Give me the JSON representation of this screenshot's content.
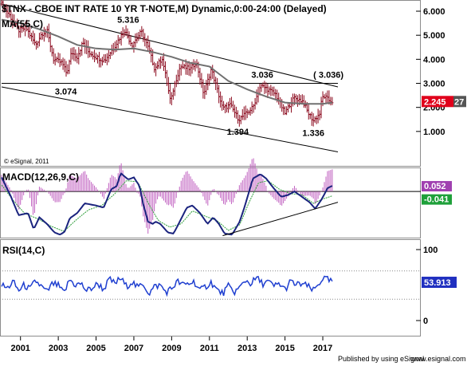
{
  "window": {
    "title": "$TNX - CBOE INT RATE 10 YR T-NOTE,M) Dynamic,0:00-24:00 (Delayed)",
    "copyright": "© eSignal, 2011",
    "footer_left": "Published by using eSignal",
    "footer_right": "www.esignal.com"
  },
  "colors": {
    "price_bar": "#8b0a1e",
    "moving_average": "#707070",
    "channel": "#000000",
    "macd_line": "#1a237e",
    "signal_line": "#2e9e3a",
    "histogram": "#c060c0",
    "rsi_line": "#1f3fd0",
    "price_tag": "#e0001b",
    "macd_tag": "#a040b0",
    "signal_tag": "#1fa03a",
    "rsi_tag": "#2030c0"
  },
  "chart_data": [
    {
      "type": "ohlc",
      "panel": "price",
      "title": "$TNX - CBOE INT RATE 10 YR T-NOTE,M) Dynamic,0:00-24:00 (Delayed)",
      "indicator_label": "MA(55,C)",
      "timeframe": "monthly",
      "x_range": [
        2000.0,
        2017.8
      ],
      "ylim": [
        0.0,
        6.2
      ],
      "yticks": [
        "1.000",
        "2.000",
        "3.000",
        "4.000",
        "5.000",
        "6.000"
      ],
      "xticks": [
        "2001",
        "2003",
        "2005",
        "2007",
        "2009",
        "2011",
        "2013",
        "2015",
        "2017"
      ],
      "close_anchors": [
        [
          2000.0,
          6.3
        ],
        [
          2000.4,
          5.85
        ],
        [
          2000.9,
          5.2
        ],
        [
          2001.3,
          5.3
        ],
        [
          2001.8,
          4.6
        ],
        [
          2002.1,
          5.05
        ],
        [
          2002.4,
          5.2
        ],
        [
          2002.75,
          4.0
        ],
        [
          2003.2,
          3.85
        ],
        [
          2003.45,
          3.4
        ],
        [
          2003.7,
          4.3
        ],
        [
          2004.0,
          4.1
        ],
        [
          2004.3,
          4.7
        ],
        [
          2004.6,
          4.3
        ],
        [
          2005.0,
          4.1
        ],
        [
          2005.45,
          3.95
        ],
        [
          2005.9,
          4.45
        ],
        [
          2006.5,
          5.2
        ],
        [
          2006.9,
          4.6
        ],
        [
          2007.4,
          5.15
        ],
        [
          2007.8,
          4.4
        ],
        [
          2008.1,
          3.6
        ],
        [
          2008.5,
          4.05
        ],
        [
          2008.95,
          2.2
        ],
        [
          2009.1,
          2.8
        ],
        [
          2009.45,
          3.7
        ],
        [
          2010.0,
          3.6
        ],
        [
          2010.3,
          3.9
        ],
        [
          2010.7,
          2.55
        ],
        [
          2011.1,
          3.6
        ],
        [
          2011.7,
          1.95
        ],
        [
          2012.1,
          2.1
        ],
        [
          2012.55,
          1.5
        ],
        [
          2012.95,
          1.75
        ],
        [
          2013.3,
          2.0
        ],
        [
          2013.7,
          2.9
        ],
        [
          2014.0,
          2.8
        ],
        [
          2014.5,
          2.55
        ],
        [
          2015.0,
          1.75
        ],
        [
          2015.3,
          2.2
        ],
        [
          2015.5,
          2.4
        ],
        [
          2015.95,
          2.25
        ],
        [
          2016.2,
          1.8
        ],
        [
          2016.5,
          1.45
        ],
        [
          2016.85,
          1.75
        ],
        [
          2016.95,
          2.4
        ],
        [
          2017.1,
          2.45
        ],
        [
          2017.3,
          2.3
        ],
        [
          2017.5,
          2.245
        ]
      ],
      "moving_average_anchors": [
        [
          2000.0,
          5.65
        ],
        [
          2001.0,
          5.5
        ],
        [
          2002.0,
          5.25
        ],
        [
          2003.0,
          4.95
        ],
        [
          2004.0,
          4.6
        ],
        [
          2005.0,
          4.45
        ],
        [
          2006.0,
          4.4
        ],
        [
          2007.0,
          4.45
        ],
        [
          2008.0,
          4.3
        ],
        [
          2009.0,
          4.1
        ],
        [
          2010.0,
          3.85
        ],
        [
          2011.0,
          3.7
        ],
        [
          2011.5,
          3.4
        ],
        [
          2012.0,
          3.1
        ],
        [
          2013.0,
          2.75
        ],
        [
          2014.0,
          2.45
        ],
        [
          2015.0,
          2.2
        ],
        [
          2016.0,
          2.15
        ],
        [
          2017.0,
          2.15
        ],
        [
          2017.5,
          2.2
        ]
      ],
      "channel_lines": [
        {
          "name": "upper",
          "points": [
            [
              2000.0,
              6.3
            ],
            [
              2017.8,
              2.85
            ]
          ]
        },
        {
          "name": "lower",
          "points": [
            [
              2000.0,
              2.85
            ],
            [
              2017.8,
              0.15
            ]
          ]
        },
        {
          "name": "horizontal",
          "points": [
            [
              2000.0,
              3.0
            ],
            [
              2017.8,
              3.0
            ]
          ]
        }
      ],
      "annotations": [
        {
          "text": "5.316",
          "x": 2006.7,
          "y": 5.316,
          "position": "above"
        },
        {
          "text": "3.074",
          "x": 2003.4,
          "y": 3.074,
          "position": "below"
        },
        {
          "text": "3.036",
          "x": 2013.8,
          "y": 3.036,
          "position": "above"
        },
        {
          "text": "1.394",
          "x": 2012.5,
          "y": 1.394,
          "position": "below"
        },
        {
          "text": "1.336",
          "x": 2016.5,
          "y": 1.336,
          "position": "below"
        },
        {
          "text": "( 3.036)",
          "x": 2017.3,
          "y": 3.036,
          "position": "above"
        }
      ],
      "last_value": {
        "price": "2.245",
        "trailing_label": "27"
      }
    },
    {
      "type": "line",
      "panel": "macd",
      "title": "MACD(12,26,9,C)",
      "x_range": [
        2000.0,
        2017.8
      ],
      "ylim": [
        -0.42,
        0.2
      ],
      "zero_line": 0.0,
      "macd_anchors": [
        [
          2000.0,
          0.13
        ],
        [
          2000.5,
          -0.05
        ],
        [
          2000.9,
          -0.22
        ],
        [
          2001.4,
          -0.2
        ],
        [
          2001.7,
          -0.35
        ],
        [
          2002.0,
          -0.24
        ],
        [
          2002.4,
          -0.3
        ],
        [
          2002.8,
          -0.38
        ],
        [
          2003.1,
          -0.4
        ],
        [
          2003.35,
          -0.37
        ],
        [
          2003.6,
          -0.25
        ],
        [
          2004.0,
          -0.2
        ],
        [
          2004.4,
          -0.11
        ],
        [
          2005.0,
          -0.13
        ],
        [
          2005.4,
          -0.15
        ],
        [
          2005.8,
          0.02
        ],
        [
          2006.1,
          0.05
        ],
        [
          2006.3,
          0.17
        ],
        [
          2006.7,
          0.11
        ],
        [
          2007.0,
          0.13
        ],
        [
          2007.3,
          0.05
        ],
        [
          2007.5,
          -0.12
        ],
        [
          2007.75,
          -0.28
        ],
        [
          2008.0,
          -0.3
        ],
        [
          2008.15,
          -0.28
        ],
        [
          2008.4,
          -0.3
        ],
        [
          2008.8,
          -0.38
        ],
        [
          2009.1,
          -0.39
        ],
        [
          2009.4,
          -0.29
        ],
        [
          2009.8,
          -0.15
        ],
        [
          2010.1,
          -0.13
        ],
        [
          2010.5,
          -0.2
        ],
        [
          2010.9,
          -0.3
        ],
        [
          2011.2,
          -0.24
        ],
        [
          2011.5,
          -0.3
        ],
        [
          2011.8,
          -0.39
        ],
        [
          2012.2,
          -0.4
        ],
        [
          2012.6,
          -0.28
        ],
        [
          2012.9,
          -0.12
        ],
        [
          2013.3,
          0.12
        ],
        [
          2013.7,
          0.16
        ],
        [
          2014.0,
          0.12
        ],
        [
          2014.4,
          0.03
        ],
        [
          2014.8,
          -0.05
        ],
        [
          2015.2,
          -0.03
        ],
        [
          2015.5,
          0.0
        ],
        [
          2015.9,
          -0.05
        ],
        [
          2016.3,
          -0.1
        ],
        [
          2016.6,
          -0.16
        ],
        [
          2016.95,
          -0.07
        ],
        [
          2017.25,
          0.03
        ],
        [
          2017.5,
          0.052
        ]
      ],
      "signal_anchors": [
        [
          2000.0,
          0.06
        ],
        [
          2000.6,
          -0.08
        ],
        [
          2001.2,
          -0.2
        ],
        [
          2002.0,
          -0.26
        ],
        [
          2002.6,
          -0.32
        ],
        [
          2003.3,
          -0.37
        ],
        [
          2003.9,
          -0.27
        ],
        [
          2004.6,
          -0.17
        ],
        [
          2005.3,
          -0.13
        ],
        [
          2006.0,
          -0.02
        ],
        [
          2006.6,
          0.1
        ],
        [
          2007.2,
          0.09
        ],
        [
          2007.8,
          -0.12
        ],
        [
          2008.3,
          -0.27
        ],
        [
          2008.9,
          -0.33
        ],
        [
          2009.5,
          -0.3
        ],
        [
          2010.1,
          -0.18
        ],
        [
          2010.8,
          -0.23
        ],
        [
          2011.4,
          -0.27
        ],
        [
          2012.0,
          -0.36
        ],
        [
          2012.6,
          -0.31
        ],
        [
          2013.1,
          -0.1
        ],
        [
          2013.6,
          0.08
        ],
        [
          2014.1,
          0.1
        ],
        [
          2014.7,
          0.02
        ],
        [
          2015.3,
          -0.02
        ],
        [
          2015.9,
          -0.03
        ],
        [
          2016.5,
          -0.11
        ],
        [
          2017.0,
          -0.07
        ],
        [
          2017.5,
          -0.041
        ]
      ],
      "trendline": [
        [
          2011.7,
          -0.41
        ],
        [
          2017.8,
          -0.1
        ]
      ],
      "last_values": {
        "macd": "0.052",
        "signal": "-0.041"
      }
    },
    {
      "type": "line",
      "panel": "rsi",
      "title": "RSI(14,C)",
      "x_range": [
        2000.0,
        2017.8
      ],
      "ylim": [
        0,
        100
      ],
      "yticks": [
        "0",
        "100"
      ],
      "reference_levels": [
        30,
        70
      ],
      "rsi_anchors": [
        [
          2000.0,
          50
        ],
        [
          2000.3,
          45
        ],
        [
          2000.6,
          55
        ],
        [
          2000.9,
          42
        ],
        [
          2001.2,
          50
        ],
        [
          2001.5,
          44
        ],
        [
          2001.8,
          56
        ],
        [
          2002.1,
          48
        ],
        [
          2002.4,
          40
        ],
        [
          2002.7,
          52
        ],
        [
          2003.0,
          49
        ],
        [
          2003.3,
          38
        ],
        [
          2003.6,
          58
        ],
        [
          2003.9,
          50
        ],
        [
          2004.2,
          52
        ],
        [
          2004.5,
          42
        ],
        [
          2004.8,
          46
        ],
        [
          2005.1,
          52
        ],
        [
          2005.4,
          44
        ],
        [
          2005.7,
          58
        ],
        [
          2006.0,
          52
        ],
        [
          2006.3,
          60
        ],
        [
          2006.6,
          48
        ],
        [
          2006.9,
          55
        ],
        [
          2007.2,
          46
        ],
        [
          2007.5,
          52
        ],
        [
          2007.8,
          38
        ],
        [
          2008.1,
          48
        ],
        [
          2008.4,
          50
        ],
        [
          2008.7,
          40
        ],
        [
          2009.0,
          45
        ],
        [
          2009.3,
          55
        ],
        [
          2009.6,
          50
        ],
        [
          2009.9,
          52
        ],
        [
          2010.2,
          55
        ],
        [
          2010.5,
          42
        ],
        [
          2010.8,
          48
        ],
        [
          2011.1,
          54
        ],
        [
          2011.4,
          43
        ],
        [
          2011.7,
          38
        ],
        [
          2012.0,
          48
        ],
        [
          2012.3,
          40
        ],
        [
          2012.6,
          46
        ],
        [
          2012.9,
          57
        ],
        [
          2013.2,
          52
        ],
        [
          2013.5,
          60
        ],
        [
          2013.8,
          52
        ],
        [
          2014.1,
          55
        ],
        [
          2014.4,
          48
        ],
        [
          2014.7,
          52
        ],
        [
          2015.0,
          44
        ],
        [
          2015.3,
          55
        ],
        [
          2015.6,
          50
        ],
        [
          2015.9,
          52
        ],
        [
          2016.2,
          48
        ],
        [
          2016.5,
          42
        ],
        [
          2016.8,
          52
        ],
        [
          2017.0,
          60
        ],
        [
          2017.2,
          58
        ],
        [
          2017.5,
          53.913
        ]
      ],
      "last_value": "53.913"
    }
  ]
}
